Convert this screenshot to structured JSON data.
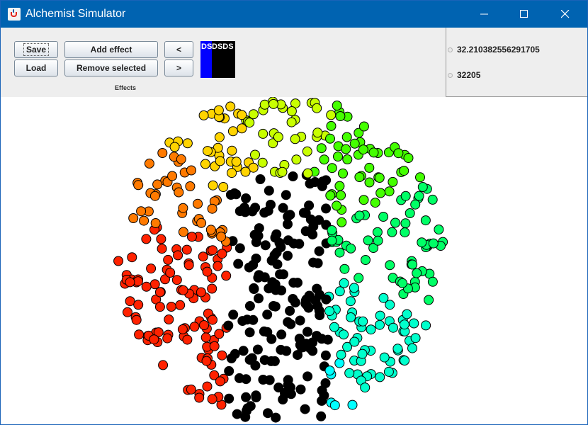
{
  "window": {
    "title": "Alchemist Simulator",
    "icon": "java-cup-icon"
  },
  "toolbar": {
    "save_label": "Save",
    "load_label": "Load",
    "add_effect_label": "Add effect",
    "remove_selected_label": "Remove selected",
    "prev_label": "<",
    "next_label": ">",
    "effects_label": "Effects",
    "swatches": [
      {
        "color": "#0000ff",
        "label": "DS"
      },
      {
        "color": "#000000",
        "label": "DSDS"
      }
    ]
  },
  "status": {
    "value_1": "32.210382556291705",
    "value_2": "32205"
  },
  "canvas": {
    "particle_outline": "#000000",
    "particle_colors": [
      "#ff2200",
      "#ff7a00",
      "#ffd400",
      "#c8ff00",
      "#44ff00",
      "#00ff66",
      "#00ffcc",
      "#00ffff",
      "#000000"
    ]
  }
}
